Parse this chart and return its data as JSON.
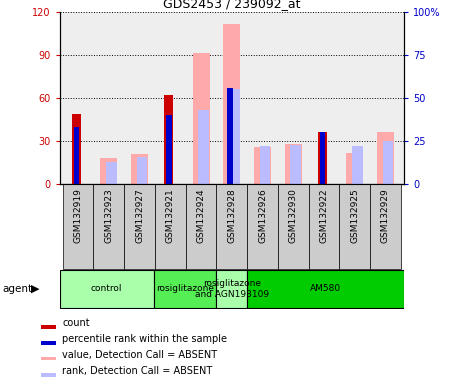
{
  "title": "GDS2453 / 239092_at",
  "samples": [
    "GSM132919",
    "GSM132923",
    "GSM132927",
    "GSM132921",
    "GSM132924",
    "GSM132928",
    "GSM132926",
    "GSM132930",
    "GSM132922",
    "GSM132925",
    "GSM132929"
  ],
  "count": [
    49,
    0,
    0,
    62,
    0,
    0,
    0,
    0,
    36,
    0,
    0
  ],
  "percentile_rank": [
    33,
    0,
    0,
    40,
    0,
    56,
    0,
    0,
    30,
    0,
    0
  ],
  "value_absent": [
    0,
    18,
    21,
    0,
    91,
    111,
    26,
    28,
    0,
    22,
    36
  ],
  "rank_absent": [
    0,
    13,
    16,
    0,
    43,
    55,
    22,
    23,
    0,
    22,
    25
  ],
  "ylim_left": [
    0,
    120
  ],
  "ylim_right": [
    0,
    100
  ],
  "yticks_left": [
    0,
    30,
    60,
    90,
    120
  ],
  "yticks_right": [
    0,
    25,
    50,
    75,
    100
  ],
  "ytick_labels_left": [
    "0",
    "30",
    "60",
    "90",
    "120"
  ],
  "ytick_labels_right": [
    "0",
    "25",
    "50",
    "75",
    "100%"
  ],
  "groups": [
    {
      "label": "control",
      "start": 0,
      "end": 3,
      "color": "#aaffaa"
    },
    {
      "label": "rosiglitazone",
      "start": 3,
      "end": 5,
      "color": "#55ee55"
    },
    {
      "label": "rosiglitazone\nand AGN193109",
      "start": 5,
      "end": 6,
      "color": "#aaffaa"
    },
    {
      "label": "AM580",
      "start": 6,
      "end": 11,
      "color": "#00cc00"
    }
  ],
  "color_count": "#cc0000",
  "color_rank": "#0000cc",
  "color_value_absent": "#ffaaaa",
  "color_rank_absent": "#bbbbff",
  "bg_plot": "#eeeeee",
  "bg_ticklabels": "#cccccc"
}
